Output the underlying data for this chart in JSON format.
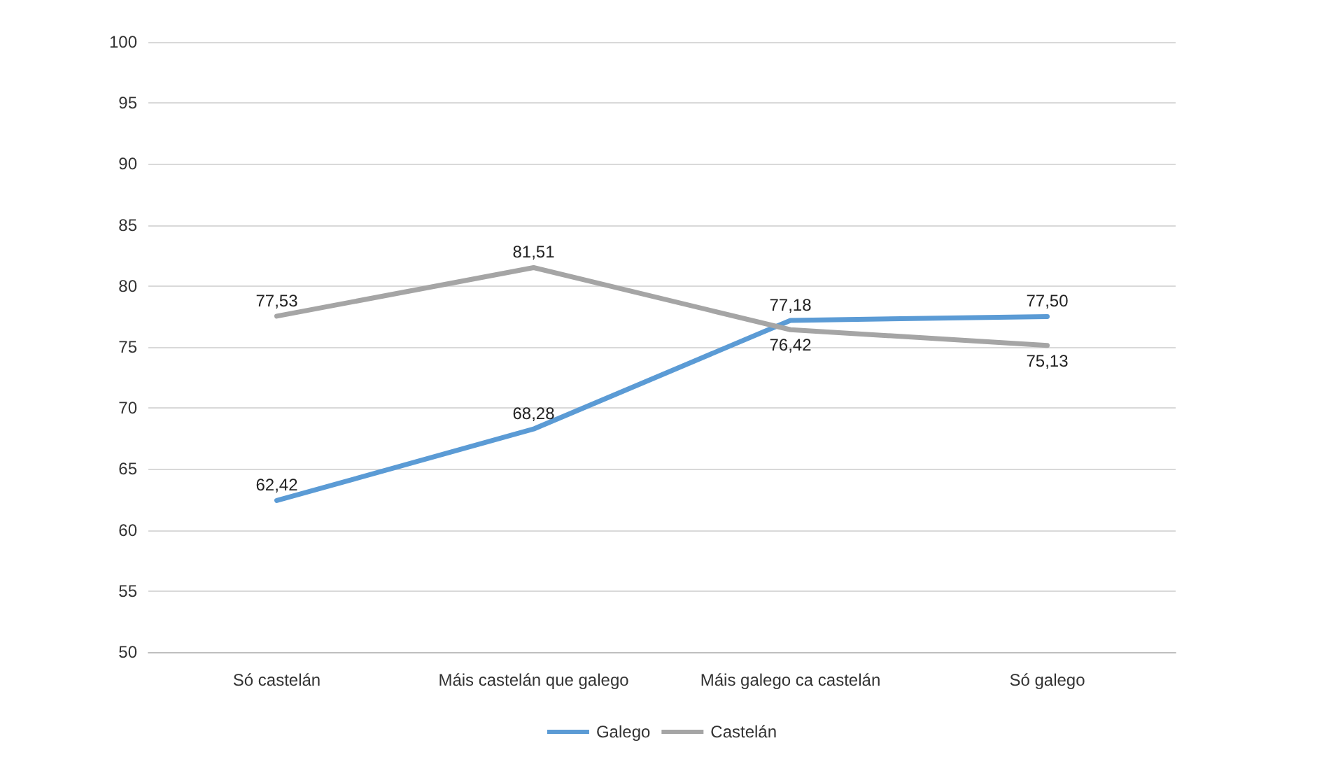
{
  "chart_data": {
    "type": "line",
    "categories": [
      "Só castelán",
      "Máis castelán que galego",
      "Máis galego ca castelán",
      "Só galego"
    ],
    "series": [
      {
        "name": "Galego",
        "color": "#5b9bd5",
        "values": [
          62.42,
          68.28,
          77.18,
          77.5
        ],
        "value_labels": [
          "62,42",
          "68,28",
          "77,18",
          "77,50"
        ]
      },
      {
        "name": "Castelán",
        "color": "#a5a5a5",
        "values": [
          77.53,
          81.51,
          76.42,
          75.13
        ],
        "value_labels": [
          "77,53",
          "81,51",
          "76,42",
          "75,13"
        ]
      }
    ],
    "ylim": [
      50,
      100
    ],
    "yticks": [
      50,
      55,
      60,
      65,
      70,
      75,
      80,
      85,
      90,
      95,
      100
    ],
    "grid": "y",
    "legend": "bottom",
    "marker": "none",
    "line_style": "solid"
  }
}
